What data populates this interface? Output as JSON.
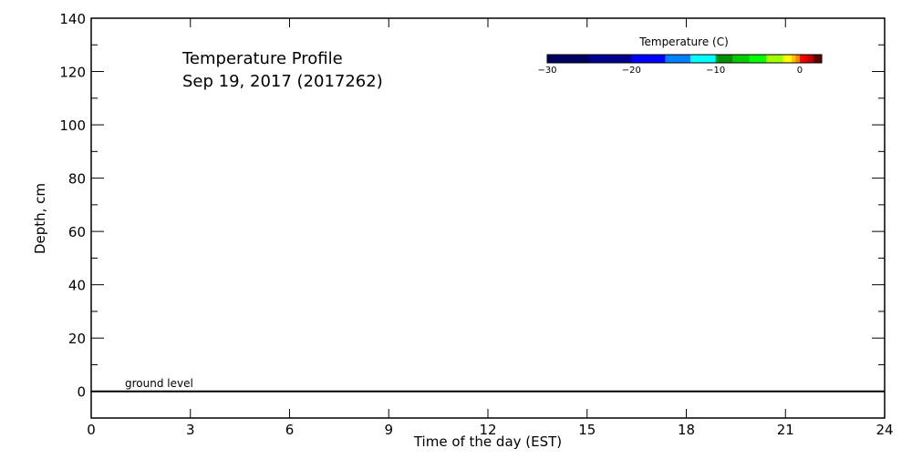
{
  "chart_data": {
    "type": "heatmap",
    "title": "Temperature Profile",
    "subtitle": "Sep 19, 2017 (2017262)",
    "xlabel": "Time of the day (EST)",
    "ylabel": "Depth, cm",
    "xlim": [
      0,
      24
    ],
    "ylim": [
      -10,
      140
    ],
    "xticks": [
      0,
      3,
      6,
      9,
      12,
      15,
      18,
      21,
      24
    ],
    "yticks": [
      0,
      20,
      40,
      60,
      80,
      100,
      120,
      140
    ],
    "grid": false,
    "series": [],
    "annotations": [
      {
        "text": "ground level",
        "y": 0
      }
    ],
    "colorbar": {
      "title": "Temperature (C)",
      "range": [
        -30,
        2.6
      ],
      "ticks": [
        -30,
        -20,
        -10,
        0
      ],
      "tick_labels": [
        "-30",
        "-20",
        "-10",
        "0"
      ],
      "bands": [
        {
          "from": -30,
          "to": -25,
          "color": "#000060"
        },
        {
          "from": -25,
          "to": -20,
          "color": "#000090"
        },
        {
          "from": -20,
          "to": -16,
          "color": "#0000ff"
        },
        {
          "from": -16,
          "to": -13,
          "color": "#0080ff"
        },
        {
          "from": -13,
          "to": -10,
          "color": "#00ffff"
        },
        {
          "from": -10,
          "to": -8,
          "color": "#009000"
        },
        {
          "from": -8,
          "to": -6,
          "color": "#00cc00"
        },
        {
          "from": -6,
          "to": -4,
          "color": "#00ff00"
        },
        {
          "from": -4,
          "to": -2,
          "color": "#a0ff00"
        },
        {
          "from": -2,
          "to": -1,
          "color": "#ffff00"
        },
        {
          "from": -1,
          "to": -0.5,
          "color": "#ffc000"
        },
        {
          "from": -0.5,
          "to": 0,
          "color": "#ff8000"
        },
        {
          "from": 0,
          "to": 0.5,
          "color": "#ff0000"
        },
        {
          "from": 0.5,
          "to": 1,
          "color": "#e00000"
        },
        {
          "from": 1,
          "to": 1.6,
          "color": "#c00000"
        },
        {
          "from": 1.6,
          "to": 2.6,
          "color": "#600000"
        }
      ]
    }
  }
}
